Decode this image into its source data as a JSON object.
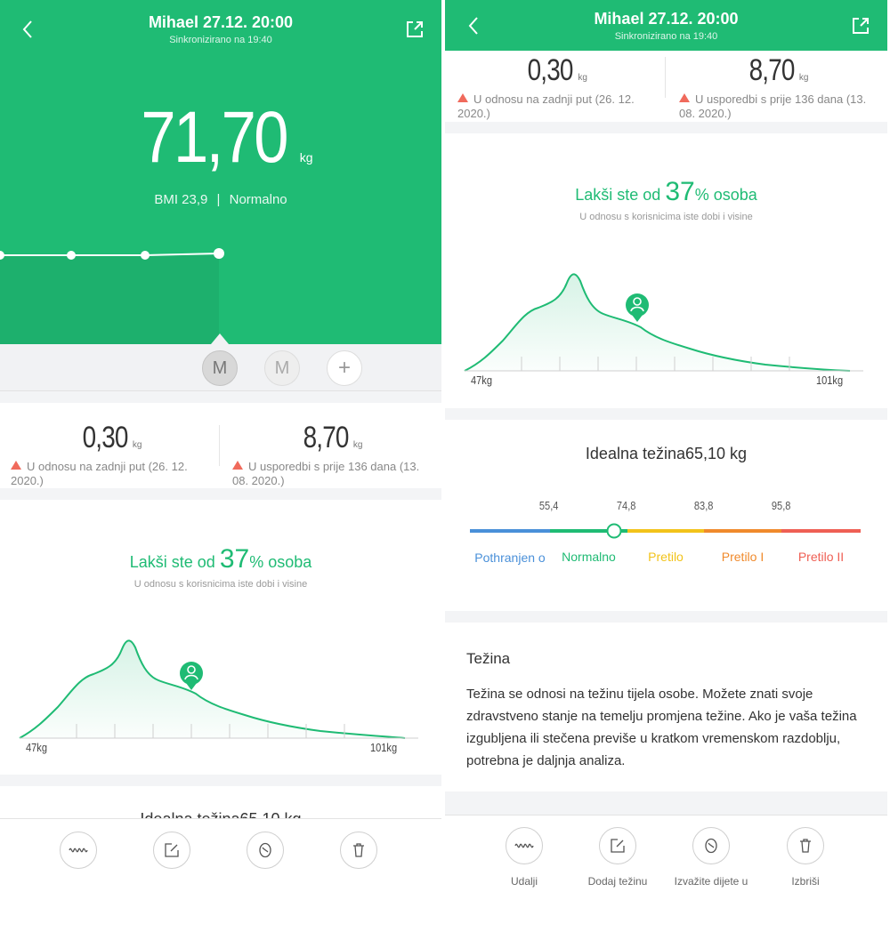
{
  "header": {
    "title": "Mihael 27.12. 20:00",
    "subtitle": "Sinkronizirano na 19:40"
  },
  "measurement": {
    "weight": "71,70",
    "unit": "kg",
    "bmi_label": "BMI 23,9",
    "bmi_status": "Normalno"
  },
  "profiles": [
    "M",
    "M",
    "+"
  ],
  "comparison": {
    "last": {
      "value": "0,30",
      "unit": "kg",
      "text": "U odnosu na zadnji put (26. 12. 2020.)"
    },
    "older": {
      "value": "8,70",
      "unit": "kg",
      "text": "U usporedbi s prije 136 dana (13. 08. 2020.)"
    }
  },
  "distribution": {
    "prefix": "Lakši ste od ",
    "percent": "37",
    "suffix": "% osoba",
    "subtitle": "U odnosu s korisnicima iste dobi i visine",
    "min_label": "47kg",
    "max_label": "101kg",
    "user_weight": 71.7
  },
  "ideal": {
    "title": "Idealna težina65,10 kg",
    "thresholds": [
      "55,4",
      "74,8",
      "83,8",
      "95,8"
    ],
    "categories": [
      {
        "label": "Pothranjen o",
        "color": "#4a90d9"
      },
      {
        "label": "Normalno",
        "color": "#1fbb74"
      },
      {
        "label": "Pretilo",
        "color": "#f2c31a"
      },
      {
        "label": "Pretilo I",
        "color": "#f08a2c"
      },
      {
        "label": "Pretilo II",
        "color": "#ef5f54"
      }
    ],
    "marker_value": 71.7
  },
  "info": {
    "heading": "Težina",
    "body": "Težina se odnosi na težinu tijela osobe. Možete znati svoje zdravstveno stanje na temelju promjena težine. Ako je vaša težina izgubljena ili stečena previše u kratkom vremenskom razdoblju, potrebna je daljnja analiza."
  },
  "actions": [
    {
      "label": "Udalji",
      "icon": "wave-icon"
    },
    {
      "label": "Dodaj težinu",
      "icon": "edit-icon"
    },
    {
      "label": "Izvažite dijete u",
      "icon": "baby-icon"
    },
    {
      "label": "Izbriši",
      "icon": "trash-icon"
    }
  ],
  "colors": {
    "accent": "#1fbb74",
    "up_arrow": "#f06a5c"
  }
}
